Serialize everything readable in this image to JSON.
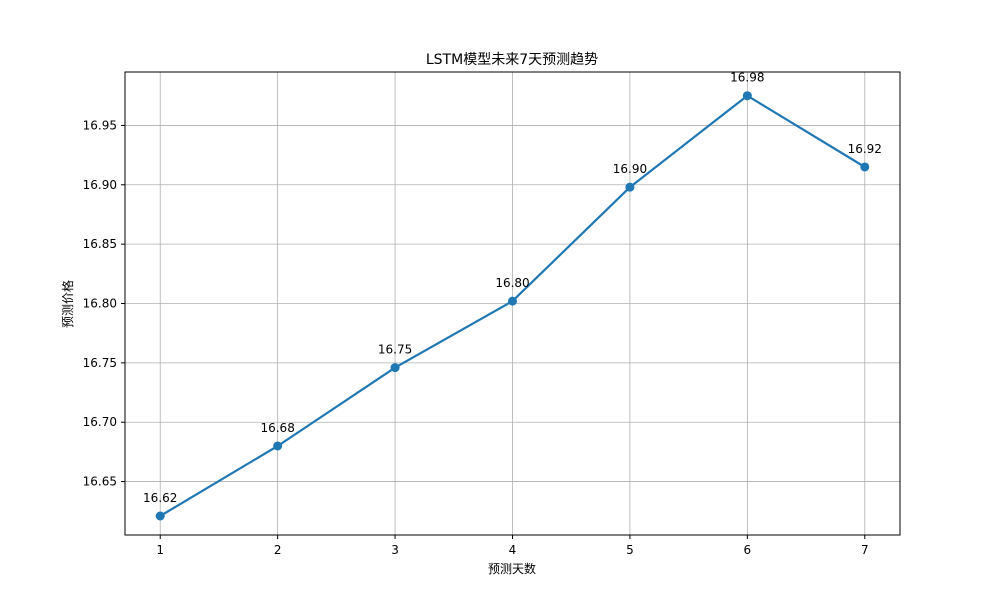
{
  "chart_data": {
    "type": "line",
    "title": "LSTM模型未来7天预测趋势",
    "xlabel": "预测天数",
    "ylabel": "预测价格",
    "x": [
      1,
      2,
      3,
      4,
      5,
      6,
      7
    ],
    "series": [
      {
        "values": [
          16.621,
          16.68,
          16.746,
          16.802,
          16.898,
          16.975,
          16.915
        ],
        "labels": [
          "16.62",
          "16.68",
          "16.75",
          "16.80",
          "16.90",
          "16.98",
          "16.92"
        ],
        "color": "#1f77b4",
        "marker": "circle"
      }
    ],
    "xlim": [
      0.7,
      7.3
    ],
    "ylim": [
      16.605,
      16.995
    ],
    "xticks": [
      "1",
      "2",
      "3",
      "4",
      "5",
      "6",
      "7"
    ],
    "yticks": [
      "16.65",
      "16.70",
      "16.75",
      "16.80",
      "16.85",
      "16.90",
      "16.95"
    ],
    "grid": true
  }
}
